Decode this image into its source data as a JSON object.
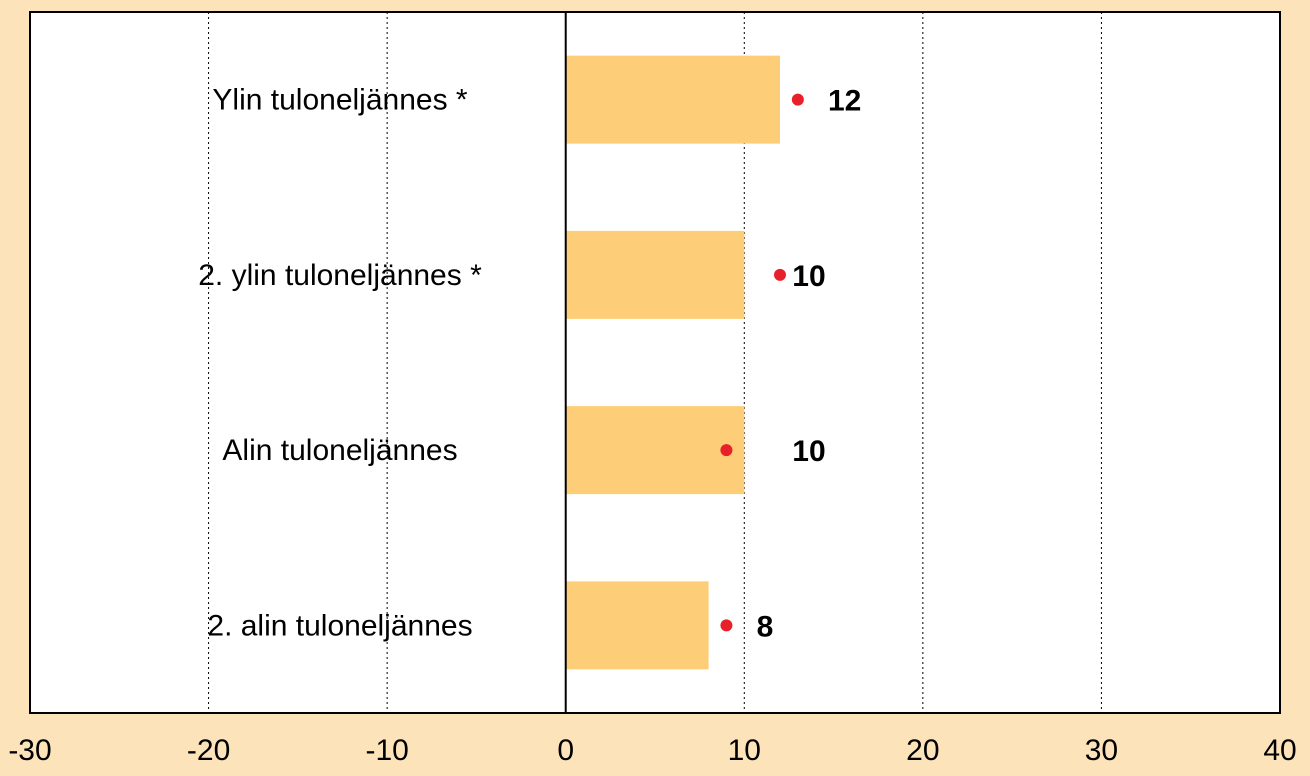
{
  "chart_data": {
    "type": "bar",
    "orientation": "horizontal",
    "categories": [
      "Ylin tuloneljännes *",
      "2. ylin tuloneljännes *",
      "Alin tuloneljännes",
      "2. alin tuloneljännes"
    ],
    "series": [
      {
        "color": "#fdcd78",
        "values": [
          12,
          10,
          10,
          8
        ]
      },
      {
        "color": "#e8202a",
        "marker": "dot",
        "values": [
          13,
          12,
          9,
          9
        ]
      }
    ],
    "xlim": [
      -30,
      40
    ],
    "xticks": [
      -30,
      -20,
      -10,
      0,
      10,
      20,
      30,
      40
    ],
    "grid": true
  }
}
